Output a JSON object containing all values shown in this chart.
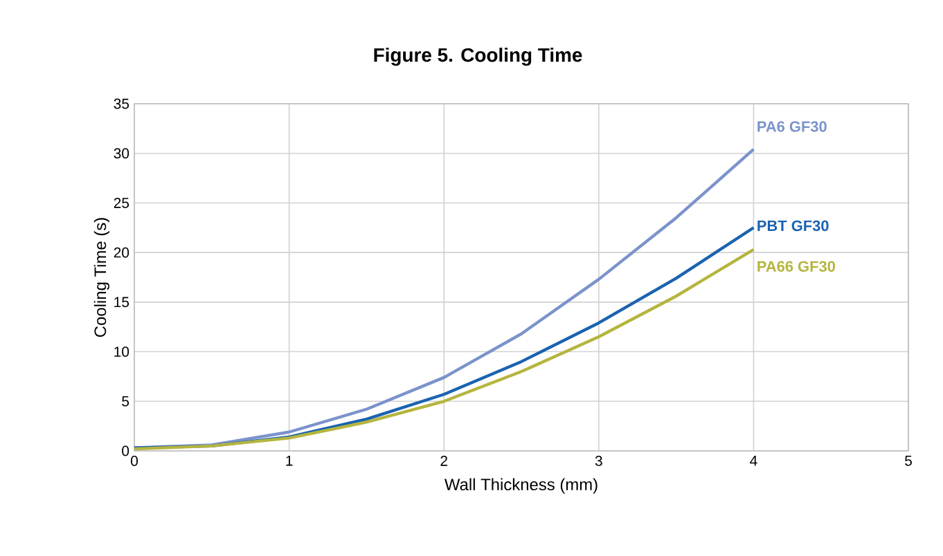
{
  "chart_data": {
    "type": "line",
    "title": "Figure 5. Cooling Time",
    "xlabel": "Wall Thickness (mm)",
    "ylabel": "Cooling Time (s)",
    "xlim": [
      0,
      5
    ],
    "xticks": [
      0,
      1,
      2,
      3,
      4,
      5
    ],
    "ylim": [
      0,
      35
    ],
    "yticks": [
      0,
      5,
      10,
      15,
      20,
      25,
      30,
      35
    ],
    "grid": true,
    "legend": false,
    "marker": "none",
    "line_style": "solid",
    "x": [
      0,
      0.5,
      1,
      1.5,
      2,
      2.5,
      3,
      3.5,
      4
    ],
    "series": [
      {
        "name": "PA6 GF30",
        "color": "#7b93cc",
        "values": [
          0.3,
          0.6,
          1.9,
          4.2,
          7.4,
          11.8,
          17.3,
          23.5,
          30.4
        ]
      },
      {
        "name": "PBT GF30",
        "color": "#1a63b0",
        "values": [
          0.3,
          0.5,
          1.4,
          3.2,
          5.7,
          9.0,
          12.9,
          17.4,
          22.5
        ]
      },
      {
        "name": "PA66 GF30",
        "color": "#b5b53f",
        "values": [
          0.2,
          0.5,
          1.3,
          2.9,
          5.0,
          8.0,
          11.5,
          15.6,
          20.3
        ]
      }
    ]
  }
}
